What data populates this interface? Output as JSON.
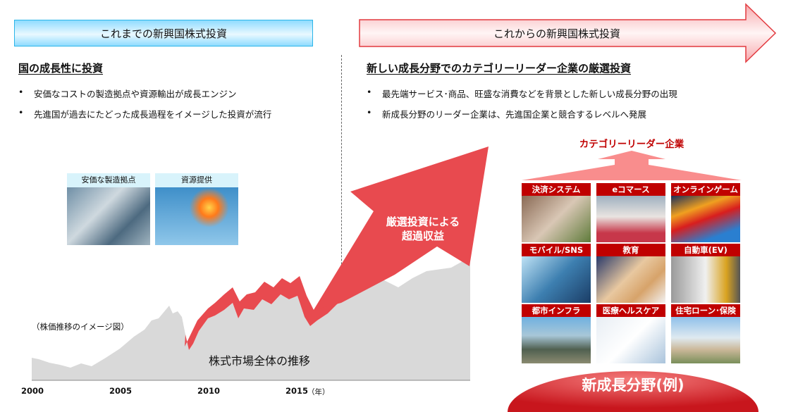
{
  "left_header": {
    "title": "これまでの新興国株式投資"
  },
  "right_header": {
    "title": "これからの新興国株式投資"
  },
  "left": {
    "subtitle": "国の成長性に投資",
    "bullets": [
      "安価なコストの製造拠点や資源輸出が成長エンジン",
      "先進国が過去にたどった成長過程をイメージした投資が流行"
    ],
    "photos": [
      {
        "label": "安価な製造拠点"
      },
      {
        "label": "資源提供"
      }
    ]
  },
  "right": {
    "subtitle": "新しい成長分野でのカテゴリーリーダー企業の厳選投資",
    "bullets": [
      "最先端サービス･商品、旺盛な消費などを背景とした新しい成長分野の出現",
      "新成長分野のリーダー企業は、先進国企業と競合するレベルへ発展"
    ],
    "leaders_label": "カテゴリーリーダー企業",
    "categories": [
      "決済システム",
      "eコマース",
      "オンラインゲーム",
      "モバイル/SNS",
      "教育",
      "自動車(EV)",
      "都市インフラ",
      "医療ヘルスケア",
      "住宅ローン･保険"
    ],
    "dome_label": "新成長分野(例)"
  },
  "chart": {
    "note": "（株価推移のイメージ図）",
    "market_label": "株式市場全体の推移",
    "arrow_label_line1": "厳選投資による",
    "arrow_label_line2": "超過収益",
    "x_ticks": [
      "2000",
      "2005",
      "2010",
      "2015"
    ],
    "x_unit": "（年）"
  },
  "colors": {
    "red": "#e84a4f",
    "dark_red": "#c00000",
    "gray_area": "#d9d9d9",
    "cyan": "#2bb5e8"
  }
}
